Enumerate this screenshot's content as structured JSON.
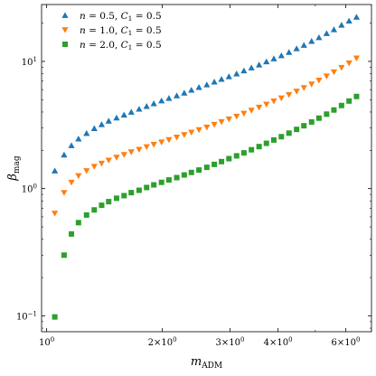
{
  "chart_data": {
    "type": "scatter",
    "xscale": "log",
    "yscale": "log",
    "xlabel": "m_ADM",
    "ylabel": "β_mag",
    "xlim": [
      0.97,
      7.0
    ],
    "ylim": [
      0.075,
      28
    ],
    "grid": false,
    "legend_position": "top-left",
    "x_ticks": [
      {
        "value": 1,
        "label": "10^0"
      },
      {
        "value": 2,
        "label": "2×10^0"
      },
      {
        "value": 3,
        "label": "3×10^0"
      },
      {
        "value": 4,
        "label": "4×10^0"
      },
      {
        "value": 6,
        "label": "6×10^0"
      }
    ],
    "y_ticks": [
      {
        "value": 0.1,
        "label": "10^−1"
      },
      {
        "value": 1,
        "label": "10^0"
      },
      {
        "value": 10,
        "label": "10^1"
      }
    ],
    "series": [
      {
        "name": "n = 0.5, C₁ = 0.5",
        "legend": {
          "n": "0.5",
          "C1": "0.5"
        },
        "color": "#1f77b4",
        "marker": "triangle-up",
        "points": [
          [
            1.05,
            1.38
          ],
          [
            1.11,
            1.84
          ],
          [
            1.16,
            2.18
          ],
          [
            1.21,
            2.46
          ],
          [
            1.27,
            2.72
          ],
          [
            1.33,
            2.97
          ],
          [
            1.39,
            3.19
          ],
          [
            1.45,
            3.4
          ],
          [
            1.52,
            3.6
          ],
          [
            1.59,
            3.8
          ],
          [
            1.66,
            4.0
          ],
          [
            1.74,
            4.22
          ],
          [
            1.82,
            4.44
          ],
          [
            1.9,
            4.66
          ],
          [
            1.99,
            4.9
          ],
          [
            2.08,
            5.13
          ],
          [
            2.18,
            5.38
          ],
          [
            2.28,
            5.65
          ],
          [
            2.38,
            5.95
          ],
          [
            2.49,
            6.25
          ],
          [
            2.61,
            6.55
          ],
          [
            2.73,
            6.9
          ],
          [
            2.85,
            7.25
          ],
          [
            2.98,
            7.6
          ],
          [
            3.12,
            8.0
          ],
          [
            3.26,
            8.45
          ],
          [
            3.41,
            8.9
          ],
          [
            3.57,
            9.4
          ],
          [
            3.73,
            9.95
          ],
          [
            3.9,
            10.5
          ],
          [
            4.08,
            11.1
          ],
          [
            4.27,
            11.8
          ],
          [
            4.47,
            12.6
          ],
          [
            4.67,
            13.4
          ],
          [
            4.89,
            14.4
          ],
          [
            5.11,
            15.4
          ],
          [
            5.35,
            16.6
          ],
          [
            5.59,
            17.8
          ],
          [
            5.85,
            19.3
          ],
          [
            6.12,
            20.8
          ],
          [
            6.4,
            22.3
          ]
        ]
      },
      {
        "name": "n = 1.0, C₁ = 0.5",
        "legend": {
          "n": "1.0",
          "C1": "0.5"
        },
        "color": "#ff7f0e",
        "marker": "triangle-down",
        "points": [
          [
            1.05,
            0.64
          ],
          [
            1.11,
            0.93
          ],
          [
            1.16,
            1.12
          ],
          [
            1.21,
            1.26
          ],
          [
            1.27,
            1.38
          ],
          [
            1.33,
            1.49
          ],
          [
            1.39,
            1.58
          ],
          [
            1.45,
            1.67
          ],
          [
            1.52,
            1.76
          ],
          [
            1.59,
            1.85
          ],
          [
            1.66,
            1.94
          ],
          [
            1.74,
            2.03
          ],
          [
            1.82,
            2.13
          ],
          [
            1.9,
            2.22
          ],
          [
            1.99,
            2.32
          ],
          [
            2.08,
            2.42
          ],
          [
            2.18,
            2.53
          ],
          [
            2.28,
            2.65
          ],
          [
            2.38,
            2.77
          ],
          [
            2.49,
            2.9
          ],
          [
            2.61,
            3.04
          ],
          [
            2.73,
            3.19
          ],
          [
            2.85,
            3.35
          ],
          [
            2.98,
            3.52
          ],
          [
            3.12,
            3.7
          ],
          [
            3.26,
            3.9
          ],
          [
            3.41,
            4.12
          ],
          [
            3.57,
            4.35
          ],
          [
            3.73,
            4.6
          ],
          [
            3.9,
            4.87
          ],
          [
            4.08,
            5.15
          ],
          [
            4.27,
            5.47
          ],
          [
            4.47,
            5.82
          ],
          [
            4.67,
            6.2
          ],
          [
            4.89,
            6.62
          ],
          [
            5.11,
            7.1
          ],
          [
            5.35,
            7.65
          ],
          [
            5.59,
            8.25
          ],
          [
            5.85,
            8.95
          ],
          [
            6.12,
            9.7
          ],
          [
            6.4,
            10.6
          ]
        ]
      },
      {
        "name": "n = 2.0, C₁ = 0.5",
        "legend": {
          "n": "2.0",
          "C1": "0.5"
        },
        "color": "#2ca02c",
        "marker": "square",
        "points": [
          [
            1.05,
            0.098
          ],
          [
            1.11,
            0.3
          ],
          [
            1.16,
            0.44
          ],
          [
            1.21,
            0.54
          ],
          [
            1.27,
            0.62
          ],
          [
            1.33,
            0.68
          ],
          [
            1.39,
            0.74
          ],
          [
            1.45,
            0.79
          ],
          [
            1.52,
            0.84
          ],
          [
            1.59,
            0.88
          ],
          [
            1.66,
            0.93
          ],
          [
            1.74,
            0.97
          ],
          [
            1.82,
            1.02
          ],
          [
            1.9,
            1.07
          ],
          [
            1.99,
            1.12
          ],
          [
            2.08,
            1.17
          ],
          [
            2.18,
            1.22
          ],
          [
            2.28,
            1.28
          ],
          [
            2.38,
            1.34
          ],
          [
            2.49,
            1.4
          ],
          [
            2.61,
            1.47
          ],
          [
            2.73,
            1.55
          ],
          [
            2.85,
            1.63
          ],
          [
            2.98,
            1.72
          ],
          [
            3.12,
            1.81
          ],
          [
            3.26,
            1.91
          ],
          [
            3.41,
            2.02
          ],
          [
            3.57,
            2.14
          ],
          [
            3.73,
            2.27
          ],
          [
            3.9,
            2.41
          ],
          [
            4.08,
            2.56
          ],
          [
            4.27,
            2.73
          ],
          [
            4.47,
            2.92
          ],
          [
            4.67,
            3.12
          ],
          [
            4.89,
            3.34
          ],
          [
            5.11,
            3.58
          ],
          [
            5.35,
            3.85
          ],
          [
            5.59,
            4.15
          ],
          [
            5.85,
            4.5
          ],
          [
            6.12,
            4.88
          ],
          [
            6.4,
            5.3
          ]
        ]
      }
    ]
  }
}
